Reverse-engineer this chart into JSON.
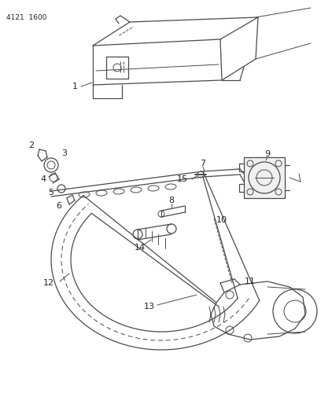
{
  "title": "4121  1600",
  "bg_color": "#ffffff",
  "line_color": "#4a4a4a",
  "label_color": "#222222",
  "figsize": [
    4.08,
    5.33
  ],
  "dpi": 100
}
